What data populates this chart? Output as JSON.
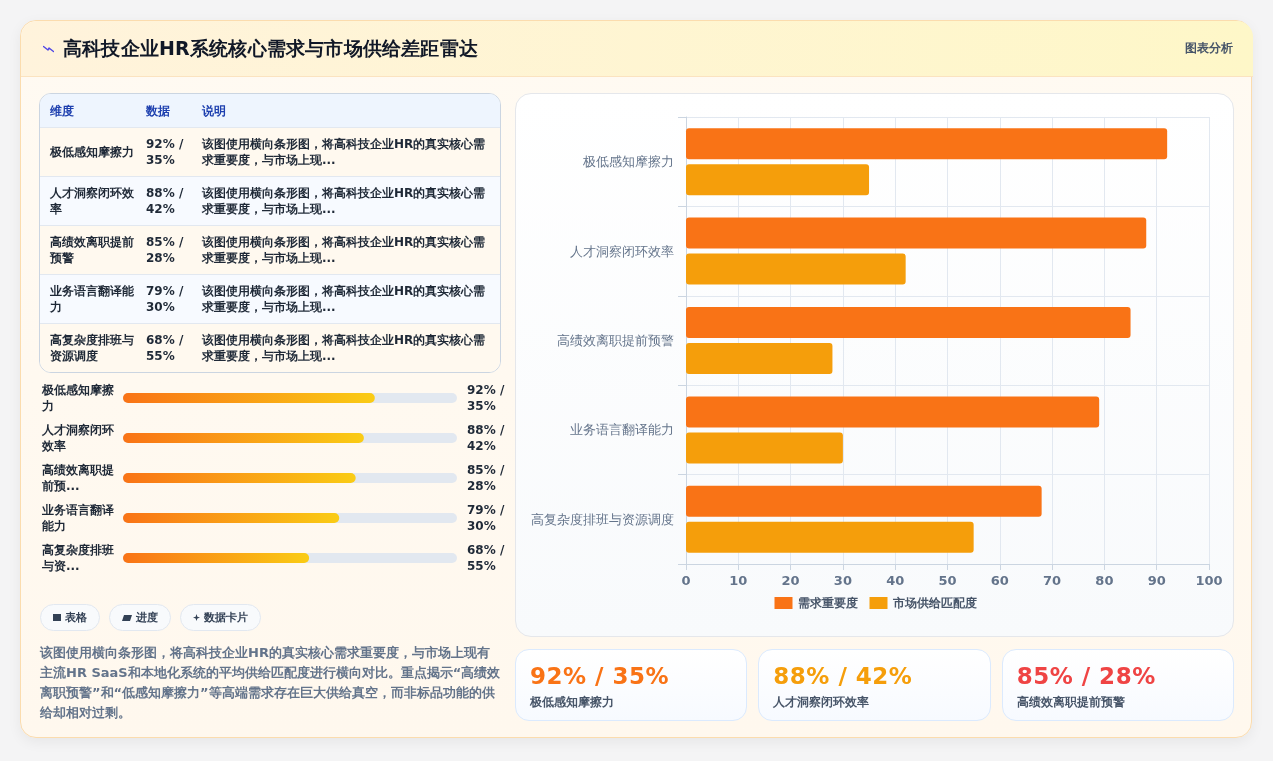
{
  "chart_data": [
    {
      "type": "other",
      "title": "高科技企业HR系统核心需求与市场供给差距雷达",
      "annotations": [
        "图表分析"
      ]
    },
    {
      "type": "other",
      "annotations": [
        "维度",
        "数据",
        "说明",
        "极低感知摩擦力",
        "92% / 35%",
        "该图使用横向条形图，将高科技企业HR的真实核心需求重要度，与市场上现...",
        "人才洞察闭环效率",
        "88% / 42%",
        "该图使用横向条形图，将高科技企业HR的真实核心需求重要度，与市场上现...",
        "高绩效离职提前预警",
        "85% / 28%",
        "该图使用横向条形图，将高科技企业HR的真实核心需求重要度，与市场上现...",
        "业务语言翻译能力",
        "79% / 30%",
        "该图使用横向条形图，将高科技企业HR的真实核心需求重要度，与市场上现...",
        "高复杂度排班与资源调度",
        "68% / 55%",
        "该图使用横向条形图，将高科技企业HR的真实核心需求重要度，与市场上现..."
      ]
    },
    {
      "type": "bar",
      "orientation": "horizontal",
      "categories": [
        "极低感知摩擦力",
        "人才洞察闭环效率",
        "高绩效离职提前预...",
        "业务语言翻译能力",
        "高复杂度排班与资..."
      ],
      "values": [
        92,
        88,
        85,
        79,
        68
      ],
      "color": "#f97316",
      "value_labels": [
        "92% / 35%",
        "88% / 42%",
        "85% / 28%",
        "79% / 30%",
        "68% / 55%"
      ]
    },
    {
      "type": "other",
      "annotations": [
        "表格",
        "进度",
        "数据卡片",
        "该图使用横向条形图，将高科技企业HR的真实核心需求重要度，与市场上现有主流HR SaaS和本地化系统的平均供给匹配度进行横向对比。重点揭示“高绩效离职预警”和“低感知摩擦力”等高端需求存在巨大供给真空，而非标品功能的供给却相对过剩。"
      ]
    },
    {
      "type": "bar",
      "orientation": "horizontal",
      "categories": [
        "极低感知摩擦力",
        "人才洞察闭环效率",
        "高绩效离职提前预警",
        "业务语言翻译能力",
        "高复杂度排班与资源调度"
      ],
      "series": [
        {
          "name": "需求重要度",
          "color": "#f97316",
          "values": [
            92,
            88,
            85,
            79,
            68
          ]
        },
        {
          "name": "市场供给匹配度",
          "color": "#f59e0b",
          "values": [
            35,
            42,
            28,
            30,
            55
          ]
        }
      ],
      "xlim": [
        0,
        100
      ],
      "xticks": [
        0,
        10,
        20,
        30,
        40,
        50,
        60,
        70,
        80,
        90,
        100
      ],
      "grid": true,
      "legend": "bottom"
    },
    {
      "type": "other",
      "annotations": [
        "92% / 35%",
        "极低感知摩擦力",
        "88% / 42%",
        "人才洞察闭环效率",
        "85% / 28%",
        "高绩效离职提前预警"
      ],
      "colors": [
        "#f97316",
        "#f59e0b",
        "#ef4444"
      ]
    }
  ]
}
